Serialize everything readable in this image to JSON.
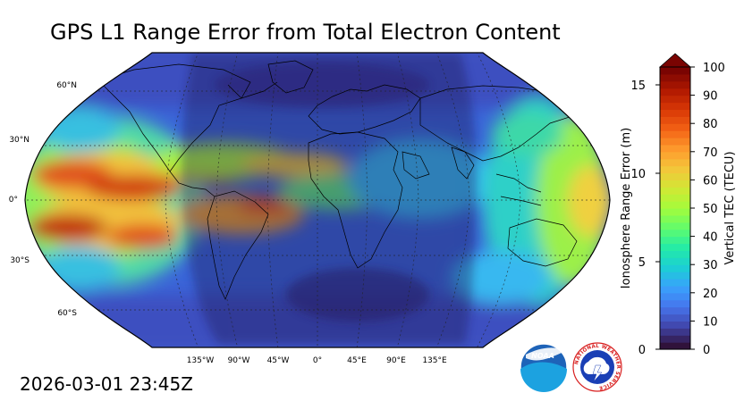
{
  "title": "GPS L1 Range Error from Total Electron Content",
  "timestamp": "2026-03-01 23:45Z",
  "map": {
    "lat_labels": [
      "60°N",
      "30°N",
      "0°",
      "30°S",
      "60°S"
    ],
    "lon_labels": [
      "135°W",
      "90°W",
      "45°W",
      "0°",
      "45°E",
      "90°E",
      "135°E"
    ]
  },
  "colorbar": {
    "left_label": "Ionosphere Range Error (m)",
    "right_label": "Vertical TEC (TECU)",
    "left_ticks": [
      "0",
      "5",
      "10",
      "15"
    ],
    "right_ticks": [
      "0",
      "10",
      "20",
      "30",
      "40",
      "50",
      "60",
      "70",
      "80",
      "90",
      "100"
    ],
    "colors": [
      "#30123b",
      "#4145ab",
      "#4675ed",
      "#39a2fc",
      "#1bcfd4",
      "#24eca6",
      "#61fc6c",
      "#a4fc3b",
      "#d1e834",
      "#f3c63a",
      "#fe9b2d",
      "#f36315",
      "#d93806",
      "#b11901",
      "#7a0402"
    ]
  },
  "logos": {
    "noaa": {
      "text": "NOAA"
    },
    "nws": {
      "text": "NATIONAL WEATHER SERVICE"
    }
  }
}
